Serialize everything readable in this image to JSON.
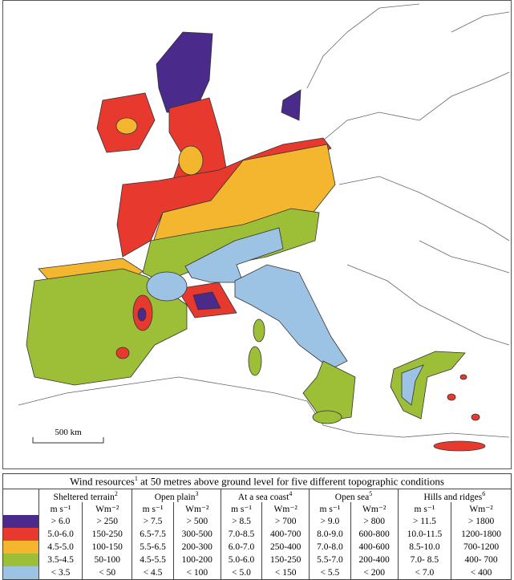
{
  "map": {
    "scale_label": "500 km"
  },
  "legend": {
    "title": "Wind resources",
    "title_sup": "1",
    "title_rest": " at 50 metres above ground level for five different topographic conditions",
    "columns": [
      {
        "name": "Sheltered terrain",
        "sup": "2"
      },
      {
        "name": "Open plain",
        "sup": "3"
      },
      {
        "name": "At a sea coast",
        "sup": "4"
      },
      {
        "name": "Open sea",
        "sup": "5"
      },
      {
        "name": "Hills and ridges",
        "sup": "6"
      }
    ],
    "units": [
      "m s⁻¹",
      "Wm⁻²"
    ],
    "rows": [
      {
        "color": "#4a2a8a",
        "cells": [
          "> 6.0",
          "> 250",
          "> 7.5",
          "> 500",
          "> 8.5",
          "> 700",
          "> 9.0",
          "> 800",
          "> 11.5",
          "> 1800"
        ]
      },
      {
        "color": "#e8392e",
        "cells": [
          "5.0-6.0",
          "150-250",
          "6.5-7.5",
          "300-500",
          "7.0-8.5",
          "400-700",
          "8.0-9.0",
          "600-800",
          "10.0-11.5",
          "1200-1800"
        ]
      },
      {
        "color": "#f4b62e",
        "cells": [
          "4.5-5.0",
          "100-150",
          "5.5-6.5",
          "200-300",
          "6.0-7.0",
          "250-400",
          "7.0-8.0",
          "400-600",
          "8.5-10.0",
          "700-1200"
        ]
      },
      {
        "color": "#9dbf38",
        "cells": [
          "3.5-4.5",
          "50-100",
          "4.5-5.5",
          "100-200",
          "5.0-6.0",
          "150-250",
          "5.5-7.0",
          "200-400",
          "7.0- 8.5",
          "400- 700"
        ]
      },
      {
        "color": "#9cc3e3",
        "cells": [
          "< 3.5",
          "< 50",
          "< 4.5",
          "< 100",
          "< 5.0",
          "< 150",
          "< 5.5",
          "< 200",
          "< 7.0",
          "< 400"
        ]
      }
    ]
  }
}
